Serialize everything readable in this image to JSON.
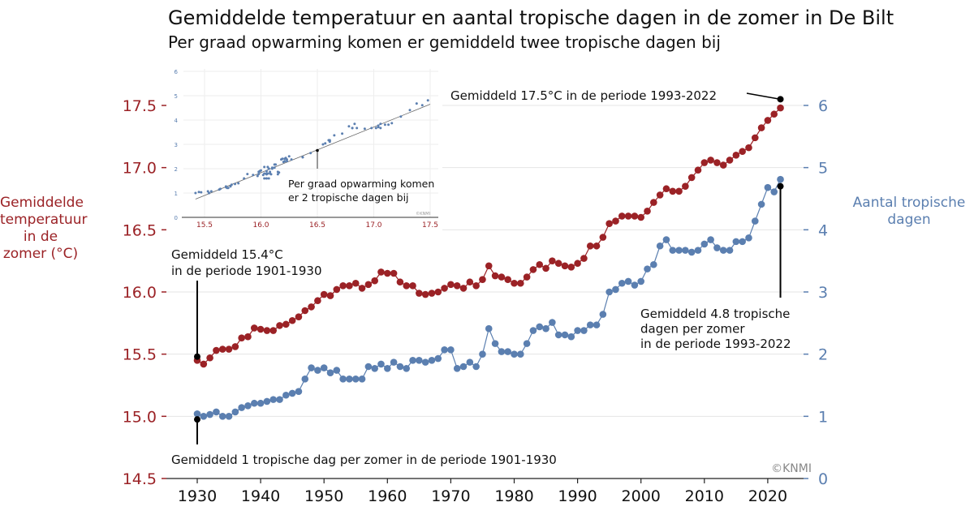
{
  "title": "Gemiddelde temperatuur en aantal tropische dagen in de zomer in De Bilt",
  "subtitle": "Per graad opwarming komen er gemiddeld twee tropische dagen bij",
  "colors": {
    "temperature": "#9b2226",
    "tropical_days": "#5b7fb0",
    "annotation": "#000000",
    "grid": "#e4e4e4"
  },
  "chart_data": [
    {
      "type": "line",
      "xlabel": "",
      "ylabel_left": "Gemiddelde temperatuur in de zomer (°C)",
      "ylabel_right": "Aantal tropische dagen",
      "xlim": [
        1925,
        2027
      ],
      "ylim_left": [
        14.5,
        17.8
      ],
      "ylim_right": [
        0,
        6.4
      ],
      "x_ticks": [
        "1930",
        "1940",
        "1950",
        "1960",
        "1970",
        "1980",
        "1990",
        "2000",
        "2010",
        "2020"
      ],
      "y_ticks_left": [
        "14.5",
        "15.0",
        "15.5",
        "16.0",
        "16.5",
        "17.0",
        "17.5"
      ],
      "y_ticks_right": [
        "0",
        "1",
        "2",
        "3",
        "4",
        "5",
        "6"
      ],
      "grid": "horizontal",
      "x_start": 1930,
      "series": [
        {
          "axis": "left",
          "values": [
            15.45,
            15.42,
            15.47,
            15.53,
            15.54,
            15.54,
            15.56,
            15.63,
            15.64,
            15.71,
            15.7,
            15.69,
            15.69,
            15.73,
            15.74,
            15.77,
            15.8,
            15.85,
            15.88,
            15.93,
            15.98,
            15.97,
            16.02,
            16.05,
            16.05,
            16.07,
            16.03,
            16.06,
            16.09,
            16.16,
            16.15,
            16.15,
            16.08,
            16.05,
            16.05,
            15.99,
            15.98,
            15.99,
            16.0,
            16.03,
            16.06,
            16.05,
            16.03,
            16.08,
            16.05,
            16.1,
            16.21,
            16.13,
            16.12,
            16.1,
            16.07,
            16.07,
            16.12,
            16.18,
            16.22,
            16.19,
            16.25,
            16.23,
            16.21,
            16.2,
            16.23,
            16.27,
            16.37,
            16.37,
            16.44,
            16.55,
            16.57,
            16.61,
            16.61,
            16.61,
            16.6,
            16.65,
            16.72,
            16.78,
            16.83,
            16.81,
            16.81,
            16.85,
            16.92,
            16.98,
            17.04,
            17.06,
            17.04,
            17.02,
            17.06,
            17.1,
            17.13,
            17.16,
            17.24,
            17.32,
            17.38,
            17.43,
            17.48
          ]
        },
        {
          "axis": "right",
          "values": [
            1.04,
            1.0,
            1.03,
            1.07,
            1.0,
            1.0,
            1.07,
            1.14,
            1.17,
            1.21,
            1.21,
            1.24,
            1.27,
            1.27,
            1.34,
            1.37,
            1.4,
            1.6,
            1.78,
            1.74,
            1.78,
            1.7,
            1.74,
            1.6,
            1.6,
            1.6,
            1.6,
            1.8,
            1.77,
            1.84,
            1.77,
            1.87,
            1.8,
            1.77,
            1.9,
            1.9,
            1.87,
            1.9,
            1.93,
            2.07,
            2.07,
            1.77,
            1.8,
            1.87,
            1.8,
            2.0,
            2.41,
            2.17,
            2.04,
            2.04,
            2.0,
            2.0,
            2.17,
            2.38,
            2.44,
            2.41,
            2.51,
            2.31,
            2.31,
            2.28,
            2.38,
            2.38,
            2.47,
            2.47,
            2.64,
            3.0,
            3.04,
            3.14,
            3.17,
            3.11,
            3.17,
            3.37,
            3.44,
            3.74,
            3.84,
            3.67,
            3.67,
            3.67,
            3.64,
            3.67,
            3.77,
            3.84,
            3.71,
            3.67,
            3.67,
            3.81,
            3.81,
            3.87,
            4.14,
            4.41,
            4.68,
            4.61,
            4.81
          ]
        }
      ],
      "annotations": [
        {
          "text_lines": [
            "Gemiddeld 15.4°C",
            "in de periode 1901-1930"
          ],
          "year": 1930,
          "axis": "left",
          "value": 15.48
        },
        {
          "text_lines": [
            "Gemiddeld 17.5°C in de periode 1993-2022"
          ],
          "year": 2022,
          "axis": "left",
          "value": 17.55
        },
        {
          "text_lines": [
            "Gemiddeld 4.8 tropische",
            "dagen per zomer",
            "in de periode 1993-2022"
          ],
          "year": 2022,
          "axis": "right",
          "value": 4.7
        },
        {
          "text_lines": [
            "Gemiddeld 1 tropische dag per zomer in de periode 1901-1930"
          ],
          "year": 1930,
          "axis": "right",
          "value": 0.95
        }
      ],
      "watermark": "©KNMI"
    },
    {
      "type": "scatter",
      "xlim": [
        15.35,
        17.55
      ],
      "ylim": [
        0,
        6
      ],
      "x_ticks": [
        "15.5",
        "16.0",
        "16.5",
        "17.0",
        "17.5"
      ],
      "y_ticks": [
        "0",
        "1",
        "2",
        "3",
        "4",
        "5",
        "6"
      ],
      "grid": "both",
      "points_from": "series pairs (temperature, tropical days)",
      "regression_line": {
        "x": [
          15.42,
          17.5
        ],
        "y": [
          0.75,
          4.65
        ]
      },
      "annotation": {
        "text_lines": [
          "Per graad opwarming komen",
          "er 2 tropische dagen bij"
        ],
        "x": 16.5,
        "y": 2.75
      },
      "watermark": "©KNMI"
    }
  ]
}
